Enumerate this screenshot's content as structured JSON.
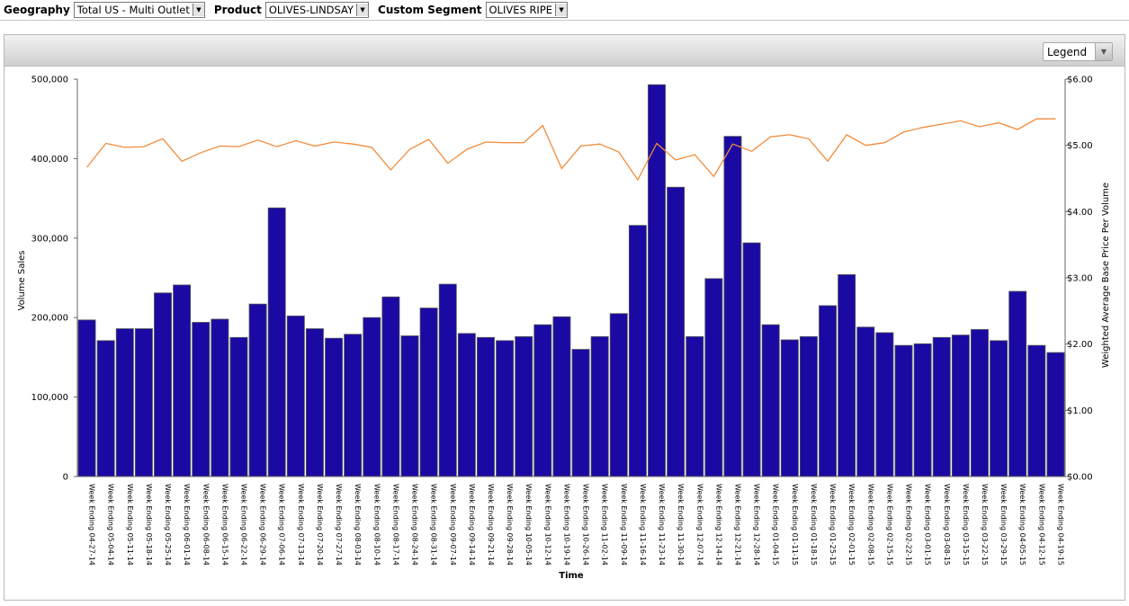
{
  "filters": {
    "geography_label": "Geography",
    "geography_value": "Total US - Multi Outlet",
    "product_label": "Product",
    "product_value": "OLIVES-LINDSAY",
    "segment_label": "Custom Segment",
    "segment_value": "OLIVES RIPE"
  },
  "legend_button": "Legend",
  "chart_data": {
    "type": "bar",
    "xlabel": "Time",
    "ylabel_left": "Volume Sales",
    "ylabel_right": "Weighted Average Base Price Per Volume",
    "ylim_left": [
      0,
      500000
    ],
    "ylim_right": [
      0,
      6
    ],
    "yticks_left": [
      "0",
      "100,000",
      "200,000",
      "300,000",
      "400,000",
      "500,000"
    ],
    "yticks_right": [
      "$0.00",
      "$1.00",
      "$2.00",
      "$3.00",
      "$4.00",
      "$5.00",
      "$6.00"
    ],
    "bar_color": "#1a0aa3",
    "line_color": "#f28c3c",
    "categories": [
      "Week Ending 04-27-14",
      "Week Ending 05-04-14",
      "Week Ending 05-11-14",
      "Week Ending 05-18-14",
      "Week Ending 05-25-14",
      "Week Ending 06-01-14",
      "Week Ending 06-08-14",
      "Week Ending 06-15-14",
      "Week Ending 06-22-14",
      "Week Ending 06-29-14",
      "Week Ending 07-06-14",
      "Week Ending 07-13-14",
      "Week Ending 07-20-14",
      "Week Ending 07-27-14",
      "Week Ending 08-03-14",
      "Week Ending 08-10-14",
      "Week Ending 08-17-14",
      "Week Ending 08-24-14",
      "Week Ending 08-31-14",
      "Week Ending 09-07-14",
      "Week Ending 09-14-14",
      "Week Ending 09-21-14",
      "Week Ending 09-28-14",
      "Week Ending 10-05-14",
      "Week Ending 10-12-14",
      "Week Ending 10-19-14",
      "Week Ending 10-26-14",
      "Week Ending 11-02-14",
      "Week Ending 11-09-14",
      "Week Ending 11-16-14",
      "Week Ending 11-23-14",
      "Week Ending 11-30-14",
      "Week Ending 12-07-14",
      "Week Ending 12-14-14",
      "Week Ending 12-21-14",
      "Week Ending 12-28-14",
      "Week Ending 01-04-15",
      "Week Ending 01-11-15",
      "Week Ending 01-18-15",
      "Week Ending 01-25-15",
      "Week Ending 02-01-15",
      "Week Ending 02-08-15",
      "Week Ending 02-15-15",
      "Week Ending 02-22-15",
      "Week Ending 03-01-15",
      "Week Ending 03-08-15",
      "Week Ending 03-15-15",
      "Week Ending 03-22-15",
      "Week Ending 03-29-15",
      "Week Ending 04-05-15",
      "Week Ending 04-12-15",
      "Week Ending 04-19-15"
    ],
    "bar_values": [
      197000,
      171000,
      186000,
      186000,
      231000,
      241000,
      194000,
      198000,
      175000,
      217000,
      338000,
      202000,
      186000,
      174000,
      179000,
      200000,
      226000,
      177000,
      212000,
      242000,
      180000,
      175000,
      171000,
      176000,
      191000,
      201000,
      160000,
      176000,
      205000,
      316000,
      493000,
      364000,
      176000,
      249000,
      428000,
      294000,
      191000,
      172000,
      176000,
      215000,
      254000,
      188000,
      181000,
      165000,
      167000,
      175000,
      178000,
      185000,
      171000,
      233000,
      165000,
      156000
    ],
    "line_values": [
      4.67,
      5.03,
      4.97,
      4.98,
      5.1,
      4.76,
      4.89,
      4.99,
      4.98,
      5.08,
      4.98,
      5.07,
      4.99,
      5.05,
      5.02,
      4.97,
      4.63,
      4.94,
      5.09,
      4.73,
      4.94,
      5.05,
      5.04,
      5.04,
      5.3,
      4.65,
      4.99,
      5.02,
      4.9,
      4.48,
      5.03,
      4.78,
      4.86,
      4.53,
      5.02,
      4.91,
      5.13,
      5.16,
      5.1,
      4.76,
      5.16,
      5.0,
      5.04,
      5.2,
      5.27,
      5.32,
      5.37,
      5.28,
      5.34,
      5.24,
      5.4,
      5.4
    ]
  }
}
